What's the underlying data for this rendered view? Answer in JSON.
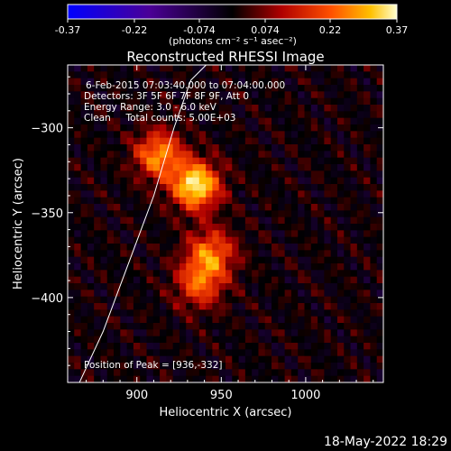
{
  "colorbar": {
    "ticks": [
      -0.37,
      -0.22,
      -0.074,
      0.074,
      0.22,
      0.37
    ],
    "tick_labels": [
      "-0.37",
      "-0.22",
      "-0.074",
      "0.074",
      "0.22",
      "0.37"
    ],
    "units": "(photons cm⁻² s⁻¹ asec⁻²)",
    "range": [
      -0.37,
      0.37
    ]
  },
  "footer": {
    "timestamp": "18-May-2022 18:29"
  },
  "chart_data": {
    "type": "heatmap",
    "title": "Reconstructed RHESSI Image",
    "xlabel": "Heliocentric X (arcsec)",
    "ylabel": "Heliocentric Y (arcsec)",
    "xlim": [
      859,
      1046
    ],
    "ylim": [
      -450,
      -263
    ],
    "xticks": [
      900,
      950,
      1000
    ],
    "yticks": [
      -300,
      -350,
      -400
    ],
    "annotations": [
      "6-Feb-2015 07:03:40.000 to 07:04:00.000",
      "Detectors: 3F 5F 6F 7F 8F 9F, Att 0",
      "Energy Range: 3.0 - 6.0 keV",
      "Clean     Total counts: 5.00E+03"
    ],
    "peak_label": "Position of Peak = [936,-332]",
    "peak": [
      936,
      -332
    ],
    "sources": [
      {
        "x": 935,
        "y": -334,
        "amplitude": 0.37
      },
      {
        "x": 913,
        "y": -316,
        "amplitude": 0.27
      },
      {
        "x": 944,
        "y": -374,
        "amplitude": 0.24
      },
      {
        "x": 937,
        "y": -392,
        "amplitude": 0.21
      }
    ],
    "limb_curve": {
      "x": [
        866,
        880,
        895,
        910,
        922,
        932,
        941
      ],
      "y": [
        -450,
        -420,
        -380,
        -340,
        -300,
        -272,
        -263
      ]
    }
  }
}
